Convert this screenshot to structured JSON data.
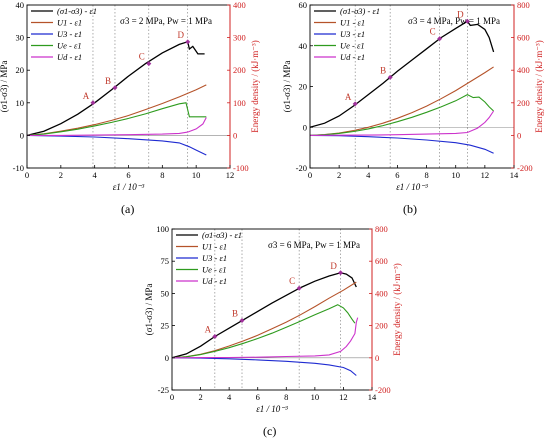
{
  "figure": {
    "captions": [
      "(a)",
      "(b)",
      "(c)"
    ],
    "series_styles": [
      {
        "legend": "(σ1-σ3) - ε1",
        "color": "#000000",
        "axis": "left"
      },
      {
        "legend": "U1 - ε1",
        "color": "#b5532a",
        "axis": "right"
      },
      {
        "legend": "U3 - ε1",
        "color": "#1f2bd1",
        "axis": "right"
      },
      {
        "legend": "Ue - ε1",
        "color": "#2e9b1e",
        "axis": "right"
      },
      {
        "legend": "Ud - ε1",
        "color": "#cc33cc",
        "axis": "right"
      }
    ],
    "right_axis_color": "#d02020",
    "marker_color": "#a0329b",
    "point_label_color": "#c0392b"
  },
  "chart_data": [
    {
      "type": "line",
      "panel": "(a)",
      "condition": "σ3 = 2 MPa, Pw = 1 MPa",
      "xlabel": "ε1 / 10⁻³",
      "ylabel": "(σ1-σ3) / MPa",
      "y2label": "Energy density / (kJ·m⁻³)",
      "xlim": [
        0,
        12
      ],
      "xticks": [
        0,
        2,
        4,
        6,
        8,
        10,
        12
      ],
      "ylim": [
        -10,
        40
      ],
      "yticks": [
        -10,
        0,
        10,
        20,
        30,
        40
      ],
      "y2lim": [
        -100,
        400
      ],
      "y2ticks": [
        -100,
        0,
        100,
        200,
        300,
        400
      ],
      "points": [
        {
          "label": "A",
          "x": 3.9,
          "y": 10
        },
        {
          "label": "B",
          "x": 5.2,
          "y": 14.6
        },
        {
          "label": "C",
          "x": 7.2,
          "y": 22
        },
        {
          "label": "D",
          "x": 9.5,
          "y": 28.7
        }
      ],
      "series": [
        {
          "name": "(σ1-σ3) - ε1",
          "axis": "left",
          "x": [
            0,
            1,
            2,
            3,
            4,
            5,
            6,
            7,
            8,
            9,
            9.5,
            9.6,
            9.8,
            10.1,
            10.5
          ],
          "y": [
            0,
            1.3,
            3.6,
            6.5,
            10,
            14,
            18.2,
            22,
            25.3,
            27.9,
            28.7,
            26.5,
            27.3,
            25,
            25
          ]
        },
        {
          "name": "U1 - ε1",
          "axis": "right",
          "x": [
            0,
            1,
            2,
            3,
            4,
            5,
            6,
            7,
            8,
            9,
            10,
            10.6
          ],
          "y": [
            0,
            5,
            13,
            22,
            33,
            46,
            61,
            79,
            98,
            118,
            140,
            155
          ]
        },
        {
          "name": "U3 - ε1",
          "axis": "right",
          "x": [
            0,
            2,
            4,
            6,
            8,
            9,
            9.6,
            10,
            10.6
          ],
          "y": [
            0,
            -2,
            -5,
            -10,
            -17,
            -23,
            -35,
            -45,
            -60
          ]
        },
        {
          "name": "Ue - ε1",
          "axis": "right",
          "x": [
            0,
            1,
            2,
            3,
            4,
            5,
            6,
            7,
            8,
            9,
            9.4,
            9.6,
            10,
            10.6
          ],
          "y": [
            0,
            4,
            11,
            19,
            29,
            40,
            52,
            66,
            82,
            97,
            100,
            57,
            57,
            57
          ]
        },
        {
          "name": "Ud - ε1",
          "axis": "right",
          "x": [
            0,
            2,
            4,
            6,
            8,
            9,
            9.5,
            10,
            10.4,
            10.6
          ],
          "y": [
            0,
            0,
            1,
            2,
            4,
            6,
            10,
            20,
            35,
            55
          ]
        }
      ]
    },
    {
      "type": "line",
      "panel": "(b)",
      "condition": "σ3 = 4 MPa, Pw = 1 MPa",
      "xlabel": "ε1 / 10⁻³",
      "ylabel": "(σ1-σ3) / MPa",
      "y2label": "Energy density / (kJ·m⁻³)",
      "xlim": [
        0,
        14
      ],
      "xticks": [
        0,
        2,
        4,
        6,
        8,
        10,
        12,
        14
      ],
      "ylim": [
        -20,
        60
      ],
      "yticks": [
        -20,
        0,
        20,
        40,
        60
      ],
      "y2lim": [
        -200,
        800
      ],
      "y2ticks": [
        -200,
        0,
        200,
        400,
        600,
        800
      ],
      "points": [
        {
          "label": "A",
          "x": 3.1,
          "y": 11.5
        },
        {
          "label": "B",
          "x": 5.5,
          "y": 24.5
        },
        {
          "label": "C",
          "x": 8.9,
          "y": 43.5
        },
        {
          "label": "D",
          "x": 10.8,
          "y": 52
        }
      ],
      "series": [
        {
          "name": "(σ1-σ3) - ε1",
          "axis": "left",
          "x": [
            0,
            1,
            2,
            3,
            4,
            5,
            6,
            7,
            8,
            9,
            10,
            10.8,
            11,
            11.5,
            12,
            12.3,
            12.6
          ],
          "y": [
            0,
            2,
            5.5,
            10.5,
            16,
            21.5,
            27.5,
            33,
            38.5,
            44,
            48.5,
            52,
            50,
            50.5,
            48,
            44,
            37
          ]
        },
        {
          "name": "U1 - ε1",
          "axis": "right",
          "x": [
            0,
            1,
            2,
            3,
            4,
            5,
            6,
            7,
            8,
            9,
            10,
            11,
            12,
            12.6
          ],
          "y": [
            0,
            5,
            15,
            30,
            50,
            75,
            105,
            140,
            180,
            225,
            275,
            330,
            385,
            420
          ]
        },
        {
          "name": "U3 - ε1",
          "axis": "right",
          "x": [
            0,
            2,
            4,
            6,
            8,
            10,
            11,
            12,
            12.6
          ],
          "y": [
            0,
            -2,
            -8,
            -16,
            -28,
            -45,
            -60,
            -85,
            -110
          ]
        },
        {
          "name": "Ue - ε1",
          "axis": "right",
          "x": [
            0,
            1,
            2,
            3,
            4,
            5,
            6,
            7,
            8,
            9,
            10,
            10.8,
            11.2,
            11.6,
            12,
            12.3,
            12.6
          ],
          "y": [
            0,
            4,
            12,
            24,
            40,
            60,
            84,
            111,
            142,
            175,
            212,
            250,
            232,
            235,
            205,
            175,
            150
          ]
        },
        {
          "name": "Ud - ε1",
          "axis": "right",
          "x": [
            0,
            2,
            4,
            6,
            8,
            10,
            10.8,
            11.5,
            12,
            12.3,
            12.6
          ],
          "y": [
            0,
            1,
            2,
            4,
            8,
            12,
            18,
            45,
            80,
            110,
            150
          ]
        }
      ]
    },
    {
      "type": "line",
      "panel": "(c)",
      "condition": "σ3 = 6 MPa, Pw = 1 MPa",
      "xlabel": "ε1 / 10⁻³",
      "ylabel": "(σ1-σ3) / MPa",
      "y2label": "Energy density / (kJ·m⁻³)",
      "xlim": [
        0,
        14
      ],
      "xticks": [
        0,
        2,
        4,
        6,
        8,
        10,
        12,
        14
      ],
      "ylim": [
        -25,
        100
      ],
      "yticks": [
        -25,
        0,
        25,
        50,
        75,
        100
      ],
      "y2lim": [
        -200,
        800
      ],
      "y2ticks": [
        -200,
        0,
        200,
        400,
        600,
        800
      ],
      "points": [
        {
          "label": "A",
          "x": 3.0,
          "y": 16.5
        },
        {
          "label": "B",
          "x": 4.9,
          "y": 29
        },
        {
          "label": "C",
          "x": 8.9,
          "y": 54
        },
        {
          "label": "D",
          "x": 11.8,
          "y": 66
        }
      ],
      "series": [
        {
          "name": "(σ1-σ3) - ε1",
          "axis": "left",
          "x": [
            0,
            1,
            2,
            3,
            4,
            5,
            6,
            7,
            8,
            9,
            10,
            11,
            11.8,
            12.2,
            12.6,
            12.9
          ],
          "y": [
            0,
            3,
            9,
            16.5,
            23,
            29.5,
            36,
            42.5,
            48.5,
            54.5,
            59.5,
            63.5,
            66,
            65,
            62,
            55
          ]
        },
        {
          "name": "U1 - ε1",
          "axis": "right",
          "x": [
            0,
            1,
            2,
            3,
            4,
            5,
            6,
            7,
            8,
            9,
            10,
            11,
            12,
            12.9
          ],
          "y": [
            0,
            7,
            22,
            45,
            73,
            105,
            140,
            180,
            222,
            268,
            318,
            370,
            420,
            470
          ]
        },
        {
          "name": "U3 - ε1",
          "axis": "right",
          "x": [
            0,
            2,
            4,
            6,
            8,
            10,
            11,
            12,
            12.5,
            12.9
          ],
          "y": [
            0,
            -2,
            -6,
            -13,
            -22,
            -34,
            -44,
            -60,
            -80,
            -110
          ]
        },
        {
          "name": "Ue - ε1",
          "axis": "right",
          "x": [
            0,
            1,
            2,
            3,
            4,
            5,
            6,
            7,
            8,
            9,
            10,
            11,
            11.6,
            12,
            12.3,
            12.6,
            12.8
          ],
          "y": [
            0,
            6,
            20,
            40,
            63,
            90,
            120,
            153,
            190,
            228,
            268,
            305,
            330,
            310,
            280,
            240,
            215
          ]
        },
        {
          "name": "Ud - ε1",
          "axis": "right",
          "x": [
            0,
            2,
            4,
            6,
            8,
            10,
            11,
            11.8,
            12.2,
            12.5,
            12.8,
            12.9,
            13
          ],
          "y": [
            0,
            1,
            2,
            4,
            8,
            12,
            18,
            40,
            70,
            105,
            150,
            220,
            250
          ]
        }
      ]
    }
  ]
}
